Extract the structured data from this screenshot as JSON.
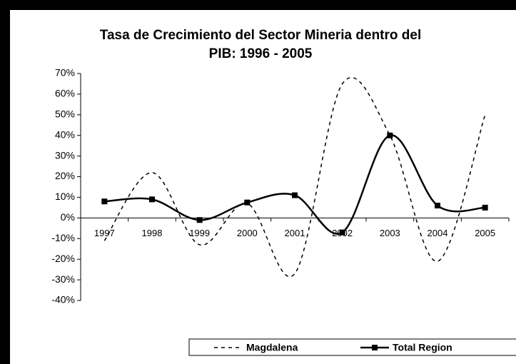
{
  "chart_data": {
    "type": "line",
    "title": [
      "Tasa de Crecimiento del Sector Mineria dentro del",
      "PIB: 1996 - 2005"
    ],
    "categories": [
      "1997",
      "1998",
      "1999",
      "2000",
      "2001",
      "2002",
      "2003",
      "2004",
      "2005"
    ],
    "series": [
      {
        "name": "Magdalena",
        "color": "#000000",
        "line_style": "dashed",
        "marker": "none",
        "values": [
          -11,
          22,
          -13,
          7,
          -27,
          65,
          40,
          -21,
          50
        ]
      },
      {
        "name": "Total Region",
        "color": "#000000",
        "line_style": "solid",
        "marker": "square",
        "values": [
          8,
          9,
          -1,
          7.5,
          11,
          -7,
          40,
          6,
          5
        ]
      }
    ],
    "ylim": [
      -40,
      70
    ],
    "yticks": [
      {
        "value": -40,
        "label": "-40%"
      },
      {
        "value": -30,
        "label": "-30%"
      },
      {
        "value": -20,
        "label": "-20%"
      },
      {
        "value": -10,
        "label": "-10%"
      },
      {
        "value": 0,
        "label": "0%"
      },
      {
        "value": 10,
        "label": "10%"
      },
      {
        "value": 20,
        "label": "20%"
      },
      {
        "value": 30,
        "label": "30%"
      },
      {
        "value": 40,
        "label": "40%"
      },
      {
        "value": 50,
        "label": "50%"
      },
      {
        "value": 60,
        "label": "60%"
      },
      {
        "value": 70,
        "label": "70%"
      }
    ],
    "smooth": true,
    "legend": "bottom"
  }
}
